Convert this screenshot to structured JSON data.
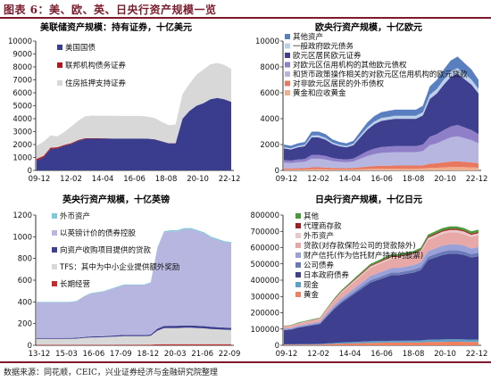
{
  "header": {
    "title": "图表 6：美、欧、英、日央行资产规模一览"
  },
  "footer": {
    "source": "数据来源：同花顺，CEIC，兴业证券经济与金融研究院整理"
  },
  "chart_data": [
    {
      "type": "area",
      "title": "美联储资产规模：持有证券，十亿美元",
      "x_ticks": [
        "09-12",
        "12-02",
        "14-04",
        "16-06",
        "18-08",
        "20-10",
        "22-12"
      ],
      "y_ticks": [
        "0",
        "1000",
        "2000",
        "3000",
        "4000",
        "5000",
        "6000",
        "7000",
        "8000",
        "9000",
        "10000"
      ],
      "ylim": [
        0,
        10000
      ],
      "series": [
        {
          "name": "美国国债",
          "color": "#3a3c8e",
          "values": [
            760,
            1000,
            1650,
            1700,
            1900,
            2050,
            2300,
            2450,
            2450,
            2450,
            2460,
            2460,
            2460,
            2460,
            2460,
            2460,
            2450,
            2400,
            2250,
            2100,
            2100,
            4000,
            4600,
            5000,
            5200,
            5500,
            5600,
            5500,
            5300
          ]
        },
        {
          "name": "联邦机构债务证券",
          "color": "#b01820",
          "values": [
            130,
            120,
            110,
            90,
            70,
            60,
            50,
            40,
            40,
            30,
            20,
            10,
            5,
            5,
            5,
            5,
            5,
            5,
            5,
            5,
            5,
            5,
            5,
            3,
            3,
            3,
            2,
            2,
            2
          ]
        },
        {
          "name": "住房抵押支持证券",
          "color": "#d8d8d8",
          "values": [
            1000,
            1100,
            950,
            850,
            1000,
            1300,
            1500,
            1700,
            1750,
            1750,
            1750,
            1750,
            1750,
            1750,
            1750,
            1750,
            1700,
            1650,
            1500,
            1400,
            1450,
            1900,
            2100,
            2400,
            2600,
            2700,
            2700,
            2650,
            2550
          ]
        }
      ]
    },
    {
      "type": "area",
      "title": "欧央行资产规模，十亿欧元",
      "x_ticks": [
        "09-12",
        "12-02",
        "14-04",
        "16-06",
        "18-08",
        "20-10",
        "22-12"
      ],
      "y_ticks": [
        "0",
        "2000",
        "4000",
        "6000",
        "8000",
        "10000"
      ],
      "ylim": [
        0,
        10000
      ],
      "series": [
        {
          "name": "其他资产",
          "color": "#5a7fc0"
        },
        {
          "name": "一般政府欧元债务",
          "color": "#bcd0ea"
        },
        {
          "name": "欧元区居民欧元证券",
          "color": "#3f3f8f"
        },
        {
          "name": "对欧元区信用机构的其他欧元债权",
          "color": "#8e7fc8"
        },
        {
          "name": "和货币政策操作相关的对欧元区信用机构的欧元贷款",
          "color": "#b6b6e0"
        },
        {
          "name": "对非欧元区居民的外币债权",
          "color": "#e87860"
        },
        {
          "name": "黄金和应收黄金",
          "color": "#f0b090"
        }
      ],
      "totals": [
        2000,
        1900,
        2100,
        2200,
        3000,
        3000,
        2800,
        2400,
        2200,
        2100,
        2300,
        3000,
        3700,
        4200,
        4500,
        4600,
        4700,
        4700,
        4700,
        4700,
        5000,
        6500,
        7000,
        7800,
        8500,
        8800,
        8300,
        7800,
        7000
      ]
    },
    {
      "type": "area",
      "title": "英央行资产规模，十亿英镑",
      "x_ticks": [
        "13-12",
        "15-03",
        "16-06",
        "17-09",
        "18-12",
        "20-03",
        "21-06",
        "22-09"
      ],
      "y_ticks": [
        "0",
        "200",
        "400",
        "600",
        "800",
        "1000",
        "1200"
      ],
      "ylim": [
        0,
        1200
      ],
      "series": [
        {
          "name": "外币资产",
          "color": "#7fc8d8"
        },
        {
          "name": "以英镑计价的债券控股",
          "color": "#b6b6e0"
        },
        {
          "name": "向资产收购项目提供的贷款",
          "color": "#3f3f8f"
        },
        {
          "name": "TFS：其中为中小企业提供额外奖励",
          "color": "#d8d8d8"
        },
        {
          "name": "长期经营",
          "color": "#c03030"
        }
      ],
      "totals": [
        400,
        400,
        400,
        400,
        400,
        400,
        410,
        450,
        480,
        490,
        500,
        520,
        540,
        560,
        560,
        560,
        560,
        580,
        900,
        1050,
        1060,
        1060,
        1080,
        1080,
        1060,
        1040,
        1000,
        980,
        960,
        950
      ]
    },
    {
      "type": "area",
      "title": "日央行资产规模，十亿日元",
      "x_ticks": [
        "09-12",
        "12-02",
        "14-04",
        "16-06",
        "18-08",
        "20-10",
        "22-12"
      ],
      "y_ticks": [
        "0",
        "100000",
        "200000",
        "300000",
        "400000",
        "500000",
        "600000",
        "700000",
        "800000"
      ],
      "ylim": [
        0,
        800000
      ],
      "series": [
        {
          "name": "其他",
          "color": "#4a9a3a"
        },
        {
          "name": "代理商存款",
          "color": "#a02020"
        },
        {
          "name": "外币资产",
          "color": "#e8c8c8"
        },
        {
          "name": "贷款(对存款保险公司的贷款除外)",
          "color": "#e8a8a8"
        },
        {
          "name": "财产信托(作为信托财产持有的股票)",
          "color": "#9aa0d8"
        },
        {
          "name": "公司债券",
          "color": "#6a7ab8"
        },
        {
          "name": "日本政府债券",
          "color": "#3f3f8f"
        },
        {
          "name": "现金",
          "color": "#5fa0c8"
        },
        {
          "name": "黄金",
          "color": "#f08060"
        }
      ],
      "totals": [
        120000,
        125000,
        140000,
        150000,
        160000,
        170000,
        230000,
        290000,
        340000,
        380000,
        420000,
        460000,
        500000,
        520000,
        540000,
        560000,
        560000,
        570000,
        580000,
        600000,
        680000,
        700000,
        720000,
        730000,
        730000,
        720000,
        700000,
        710000
      ]
    }
  ]
}
